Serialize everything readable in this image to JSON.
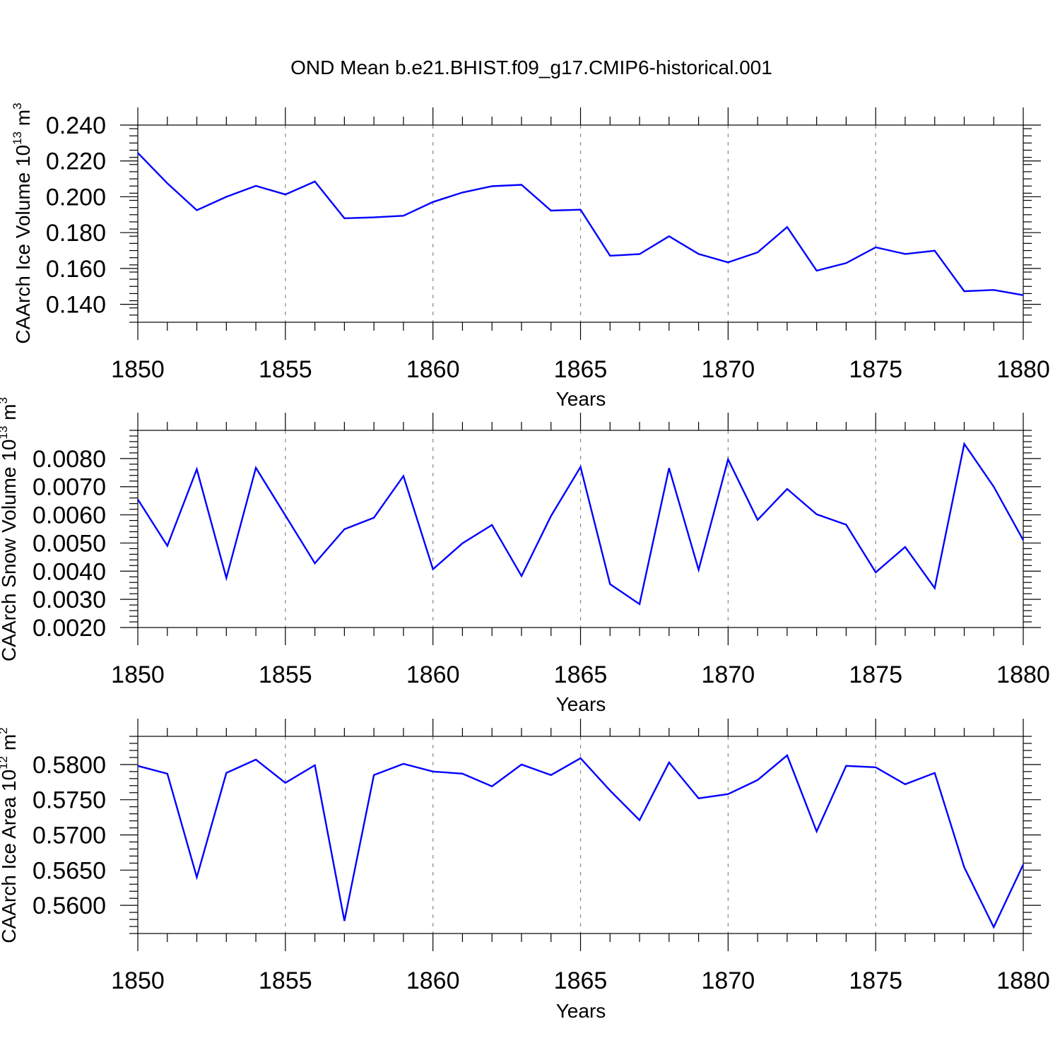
{
  "chart_data": {
    "title": "OND Mean b.e21.BHIST.f09_g17.CMIP6-historical.001",
    "panels": [
      {
        "type": "line",
        "id": "ice-volume",
        "ylabel": "CAArch Ice Volume 10",
        "ylabel_exp": "13",
        "ylabel_unit": " m",
        "ylabel_unit_exp": "3",
        "xlabel": "Years",
        "xlim": [
          1850,
          1880
        ],
        "ylim": [
          0.13,
          0.24
        ],
        "xticks": [
          1850,
          1855,
          1860,
          1865,
          1870,
          1875,
          1880
        ],
        "xtick_labels": [
          "1850",
          "1855",
          "1860",
          "1865",
          "1870",
          "1875",
          "1880"
        ],
        "yticks": [
          0.14,
          0.16,
          0.18,
          0.2,
          0.22,
          0.24
        ],
        "ytick_labels": [
          "0.140",
          "0.160",
          "0.180",
          "0.200",
          "0.220",
          "0.240"
        ],
        "series_color": "#0000ff",
        "x": [
          1850,
          1851,
          1852,
          1853,
          1854,
          1855,
          1856,
          1857,
          1858,
          1859,
          1860,
          1861,
          1862,
          1863,
          1864,
          1865,
          1866,
          1867,
          1868,
          1869,
          1870,
          1871,
          1872,
          1873,
          1874,
          1875,
          1876,
          1877,
          1878,
          1879,
          1880
        ],
        "values": [
          0.2245,
          0.2075,
          0.1925,
          0.2,
          0.2061,
          0.2013,
          0.2085,
          0.188,
          0.1885,
          0.1894,
          0.1971,
          0.2024,
          0.2059,
          0.2067,
          0.1923,
          0.1928,
          0.1671,
          0.168,
          0.178,
          0.1681,
          0.1634,
          0.169,
          0.1831,
          0.1588,
          0.163,
          0.1718,
          0.1681,
          0.1699,
          0.1473,
          0.148,
          0.1451
        ]
      },
      {
        "type": "line",
        "id": "snow-volume",
        "ylabel": "CAArch Snow Volume 10",
        "ylabel_exp": "13",
        "ylabel_unit": " m",
        "ylabel_unit_exp": "3",
        "xlabel": "Years",
        "xlim": [
          1850,
          1880
        ],
        "ylim": [
          0.002,
          0.009
        ],
        "xticks": [
          1850,
          1855,
          1860,
          1865,
          1870,
          1875,
          1880
        ],
        "xtick_labels": [
          "1850",
          "1855",
          "1860",
          "1865",
          "1870",
          "1875",
          "1880"
        ],
        "yticks": [
          0.002,
          0.003,
          0.004,
          0.005,
          0.006,
          0.007,
          0.008
        ],
        "ytick_labels": [
          "0.0020",
          "0.0030",
          "0.0040",
          "0.0050",
          "0.0060",
          "0.0070",
          "0.0080"
        ],
        "series_color": "#0000ff",
        "x": [
          1850,
          1851,
          1852,
          1853,
          1854,
          1855,
          1856,
          1857,
          1858,
          1859,
          1860,
          1861,
          1862,
          1863,
          1864,
          1865,
          1866,
          1867,
          1868,
          1869,
          1870,
          1871,
          1872,
          1873,
          1874,
          1875,
          1876,
          1877,
          1878,
          1879,
          1880
        ],
        "values": [
          0.00655,
          0.0049,
          0.00762,
          0.00376,
          0.00767,
          0.00598,
          0.00428,
          0.00549,
          0.0059,
          0.00738,
          0.00407,
          0.00499,
          0.00564,
          0.00383,
          0.00596,
          0.0077,
          0.00354,
          0.00283,
          0.00766,
          0.00405,
          0.00797,
          0.00582,
          0.00692,
          0.00602,
          0.00565,
          0.00396,
          0.00486,
          0.0034,
          0.00852,
          0.007,
          0.0051
        ]
      },
      {
        "type": "line",
        "id": "ice-area",
        "ylabel": "CAArch Ice Area 10",
        "ylabel_exp": "12",
        "ylabel_unit": " m",
        "ylabel_unit_exp": "2",
        "xlabel": "Years",
        "xlim": [
          1850,
          1880
        ],
        "ylim": [
          0.556,
          0.584
        ],
        "xticks": [
          1850,
          1855,
          1860,
          1865,
          1870,
          1875,
          1880
        ],
        "xtick_labels": [
          "1850",
          "1855",
          "1860",
          "1865",
          "1870",
          "1875",
          "1880"
        ],
        "yticks": [
          0.56,
          0.565,
          0.57,
          0.575,
          0.58
        ],
        "ytick_labels": [
          "0.5600",
          "0.5650",
          "0.5700",
          "0.5750",
          "0.5800"
        ],
        "series_color": "#0000ff",
        "x": [
          1850,
          1851,
          1852,
          1853,
          1854,
          1855,
          1856,
          1857,
          1858,
          1859,
          1860,
          1861,
          1862,
          1863,
          1864,
          1865,
          1866,
          1867,
          1868,
          1869,
          1870,
          1871,
          1872,
          1873,
          1874,
          1875,
          1876,
          1877,
          1878,
          1879,
          1880
        ],
        "values": [
          0.5798,
          0.5787,
          0.564,
          0.5788,
          0.5807,
          0.5774,
          0.5799,
          0.5578,
          0.5785,
          0.5801,
          0.579,
          0.5787,
          0.5769,
          0.58,
          0.5785,
          0.5809,
          0.5763,
          0.5721,
          0.5803,
          0.5752,
          0.5758,
          0.5778,
          0.5813,
          0.5705,
          0.5798,
          0.5796,
          0.5772,
          0.5788,
          0.5654,
          0.5569,
          0.5658
        ]
      }
    ]
  }
}
